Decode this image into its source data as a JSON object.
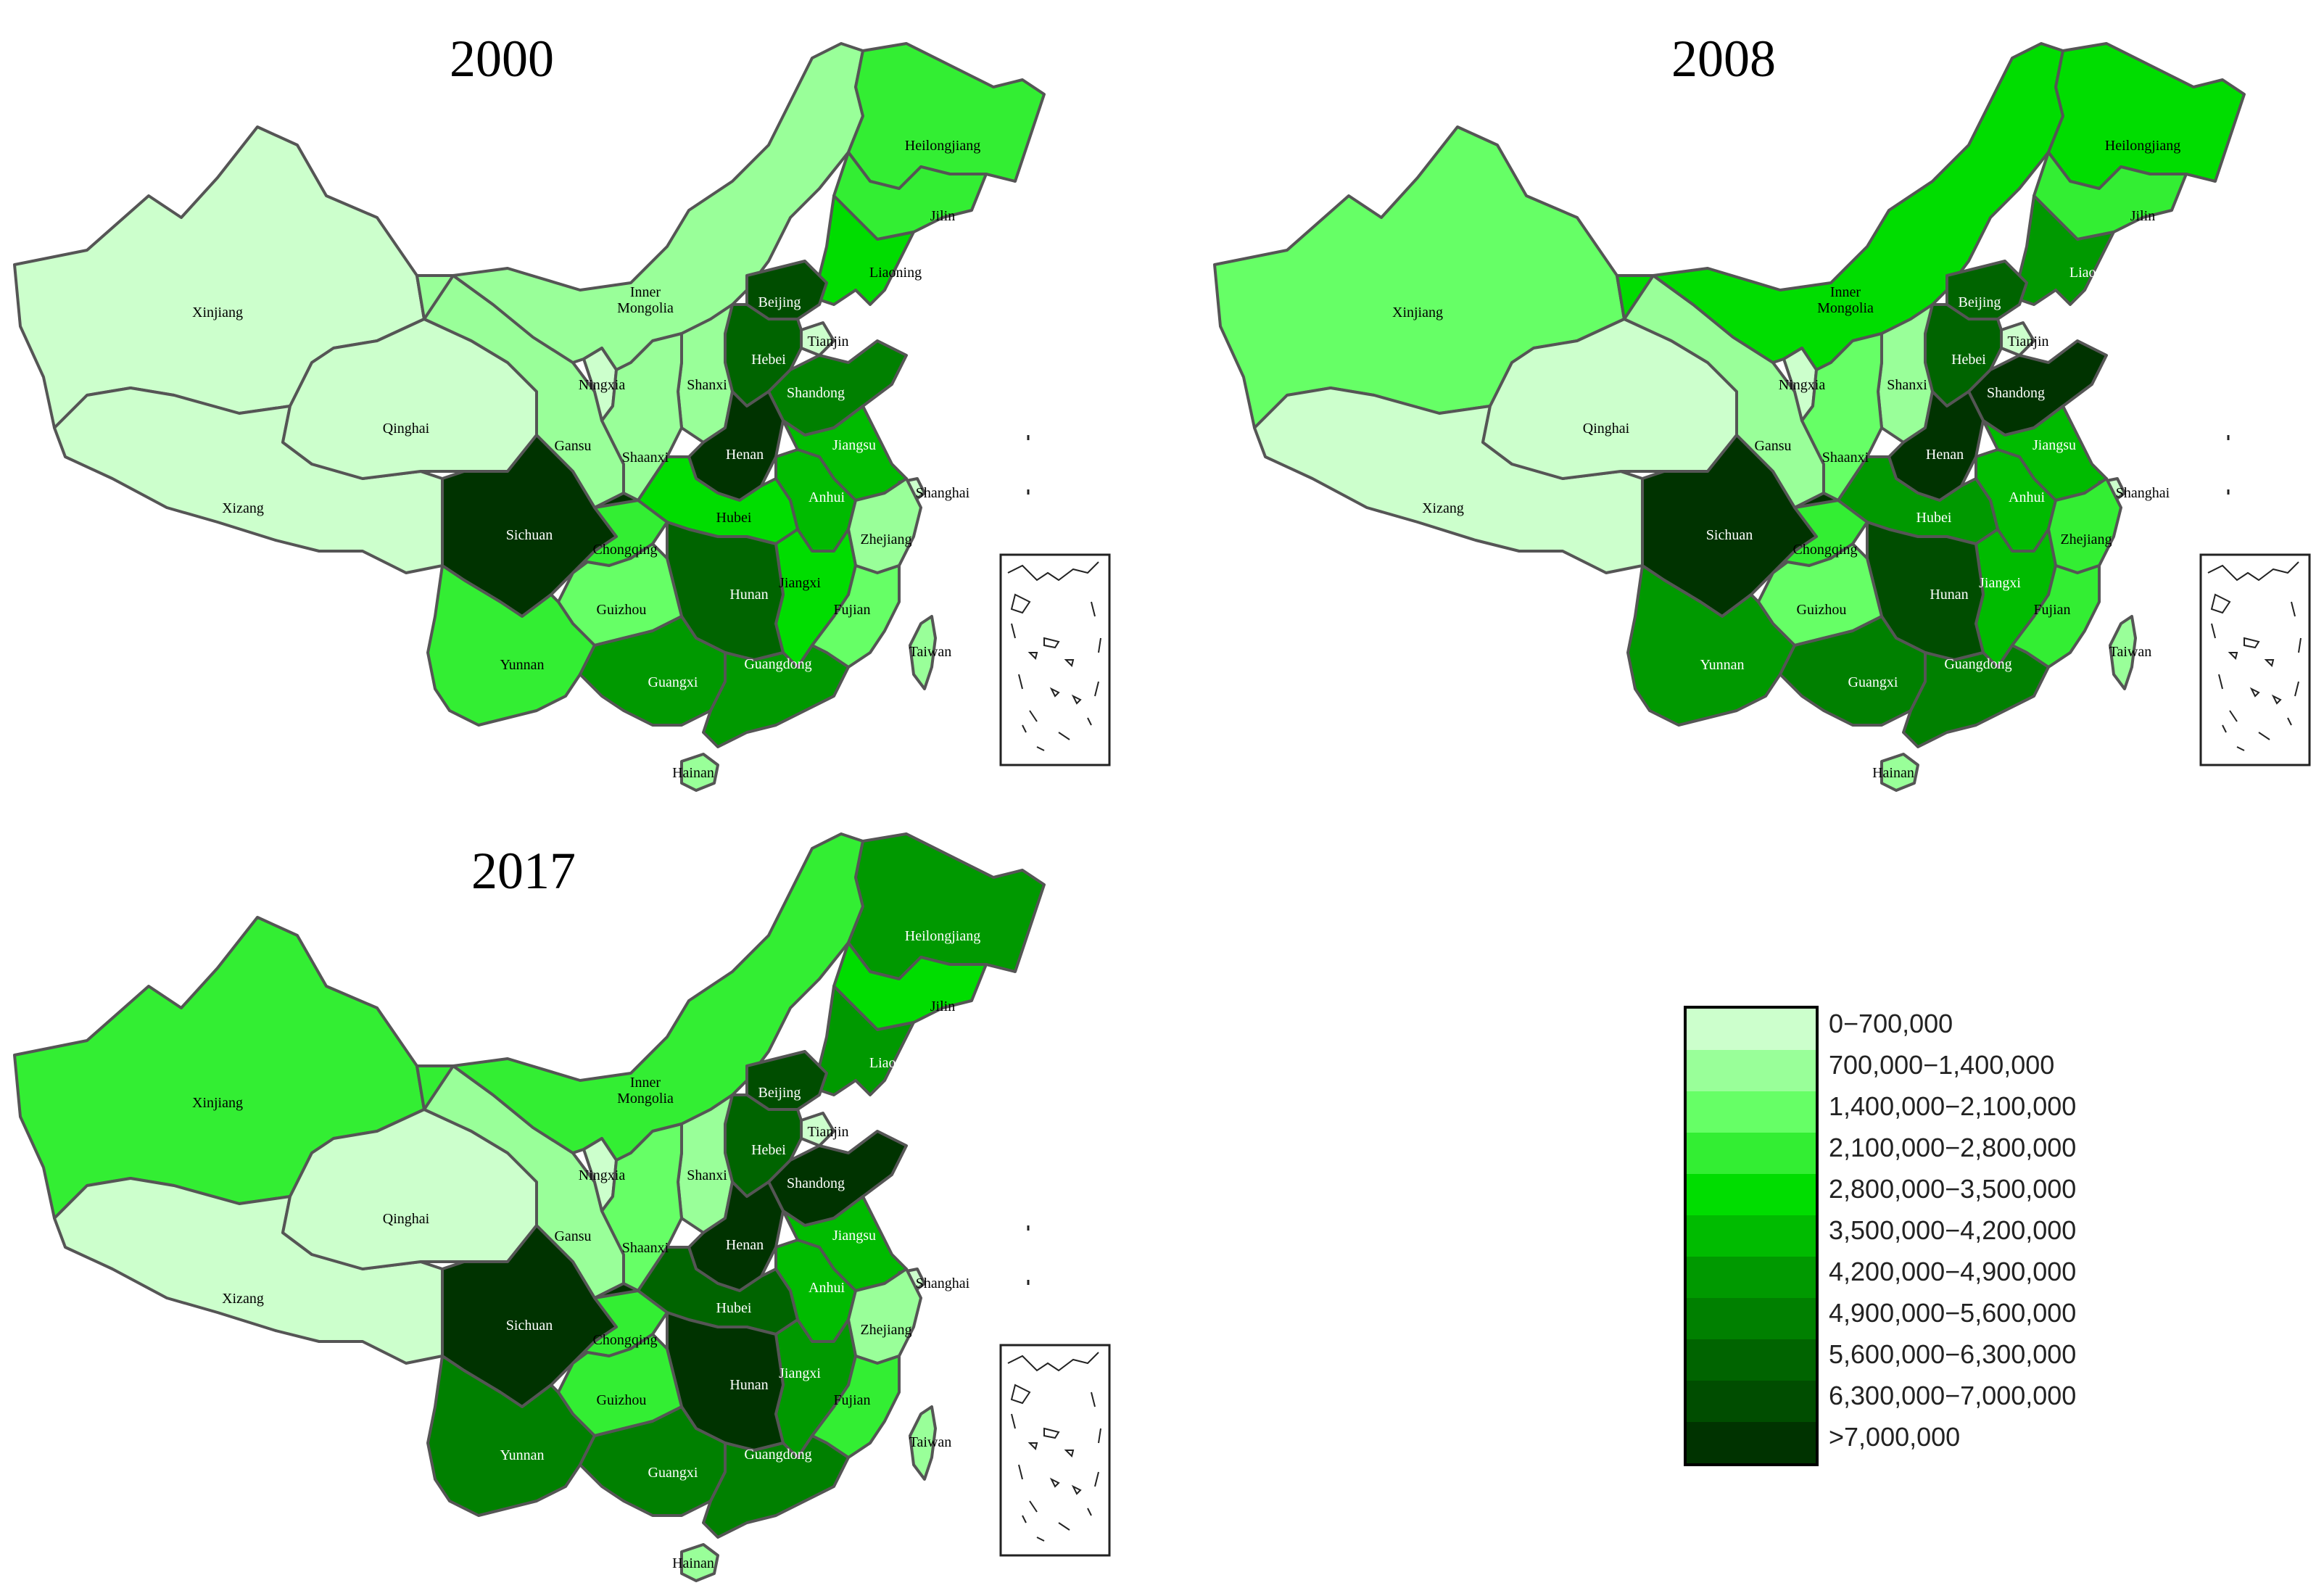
{
  "maps": [
    {
      "title": "2000",
      "provinces": {
        "xinjiang": {
          "label": "Xinjiang",
          "bin": 0
        },
        "xizang": {
          "label": "Xizang",
          "bin": 0
        },
        "qinghai": {
          "label": "Qinghai",
          "bin": 0
        },
        "gansu": {
          "label": "Gansu",
          "bin": 1
        },
        "ningxia": {
          "label": "Ningxia",
          "bin": 0
        },
        "inner_mongolia": {
          "label": "Inner\nMongolia",
          "bin": 1
        },
        "heilongjiang": {
          "label": "Heilongjiang",
          "bin": 3
        },
        "jilin": {
          "label": "Jilin",
          "bin": 3
        },
        "liaoning": {
          "label": "Liaoning",
          "bin": 4
        },
        "beijing": {
          "label": "Beijing",
          "bin": 9
        },
        "tianjin": {
          "label": "Tianjin",
          "bin": 0
        },
        "hebei": {
          "label": "Hebei",
          "bin": 8
        },
        "shanxi": {
          "label": "Shanxi",
          "bin": 1
        },
        "shaanxi": {
          "label": "Shaanxi",
          "bin": 1
        },
        "shandong": {
          "label": "Shandong",
          "bin": 7
        },
        "henan": {
          "label": "Henan",
          "bin": 10
        },
        "jiangsu": {
          "label": "Jiangsu",
          "bin": 5
        },
        "shanghai": {
          "label": "Shanghai",
          "bin": 0
        },
        "anhui": {
          "label": "Anhui",
          "bin": 5
        },
        "hubei": {
          "label": "Hubei",
          "bin": 4
        },
        "sichuan": {
          "label": "Sichuan",
          "bin": 10
        },
        "chongqing": {
          "label": "Chongqing",
          "bin": 3
        },
        "zhejiang": {
          "label": "Zhejiang",
          "bin": 1
        },
        "jiangxi": {
          "label": "Jiangxi",
          "bin": 4
        },
        "hunan": {
          "label": "Hunan",
          "bin": 8
        },
        "guizhou": {
          "label": "Guizhou",
          "bin": 2
        },
        "fujian": {
          "label": "Fujian",
          "bin": 2
        },
        "yunnan": {
          "label": "Yunnan",
          "bin": 3
        },
        "guangxi": {
          "label": "Guangxi",
          "bin": 6
        },
        "guangdong": {
          "label": "Guangdong",
          "bin": 6
        },
        "taiwan": {
          "label": "Taiwan",
          "bin": 1
        },
        "hainan": {
          "label": "Hainan",
          "bin": 1
        }
      }
    },
    {
      "title": "2008",
      "provinces": {
        "xinjiang": {
          "label": "Xinjiang",
          "bin": 2
        },
        "xizang": {
          "label": "Xizang",
          "bin": 0
        },
        "qinghai": {
          "label": "Qinghai",
          "bin": 0
        },
        "gansu": {
          "label": "Gansu",
          "bin": 1
        },
        "ningxia": {
          "label": "Ningxia",
          "bin": 0
        },
        "inner_mongolia": {
          "label": "Inner\nMongolia",
          "bin": 4
        },
        "heilongjiang": {
          "label": "Heilongjiang",
          "bin": 4
        },
        "jilin": {
          "label": "Jilin",
          "bin": 3
        },
        "liaoning": {
          "label": "Liaoning",
          "bin": 6
        },
        "beijing": {
          "label": "Beijing",
          "bin": 8
        },
        "tianjin": {
          "label": "Tianjin",
          "bin": 0
        },
        "hebei": {
          "label": "Hebei",
          "bin": 8
        },
        "shanxi": {
          "label": "Shanxi",
          "bin": 1
        },
        "shaanxi": {
          "label": "Shaanxi",
          "bin": 2
        },
        "shandong": {
          "label": "Shandong",
          "bin": 10
        },
        "henan": {
          "label": "Henan",
          "bin": 10
        },
        "jiangsu": {
          "label": "Jiangsu",
          "bin": 5
        },
        "shanghai": {
          "label": "Shanghai",
          "bin": 0
        },
        "anhui": {
          "label": "Anhui",
          "bin": 5
        },
        "hubei": {
          "label": "Hubei",
          "bin": 6
        },
        "sichuan": {
          "label": "Sichuan",
          "bin": 10
        },
        "chongqing": {
          "label": "Chongqing",
          "bin": 3
        },
        "zhejiang": {
          "label": "Zhejiang",
          "bin": 3
        },
        "jiangxi": {
          "label": "Jiangxi",
          "bin": 5
        },
        "hunan": {
          "label": "Hunan",
          "bin": 9
        },
        "guizhou": {
          "label": "Guizhou",
          "bin": 2
        },
        "fujian": {
          "label": "Fujian",
          "bin": 3
        },
        "yunnan": {
          "label": "Yunnan",
          "bin": 6
        },
        "guangxi": {
          "label": "Guangxi",
          "bin": 7
        },
        "guangdong": {
          "label": "Guangdong",
          "bin": 7
        },
        "taiwan": {
          "label": "Taiwan",
          "bin": 1
        },
        "hainan": {
          "label": "Hainan",
          "bin": 1
        }
      }
    },
    {
      "title": "2017",
      "provinces": {
        "xinjiang": {
          "label": "Xinjiang",
          "bin": 3
        },
        "xizang": {
          "label": "Xizang",
          "bin": 0
        },
        "qinghai": {
          "label": "Qinghai",
          "bin": 0
        },
        "gansu": {
          "label": "Gansu",
          "bin": 1
        },
        "ningxia": {
          "label": "Ningxia",
          "bin": 0
        },
        "inner_mongolia": {
          "label": "Inner\nMongolia",
          "bin": 3
        },
        "heilongjiang": {
          "label": "Heilongjiang",
          "bin": 6
        },
        "jilin": {
          "label": "Jilin",
          "bin": 4
        },
        "liaoning": {
          "label": "Liaoning",
          "bin": 6
        },
        "beijing": {
          "label": "Beijing",
          "bin": 9
        },
        "tianjin": {
          "label": "Tianjin",
          "bin": 0
        },
        "hebei": {
          "label": "Hebei",
          "bin": 8
        },
        "shanxi": {
          "label": "Shanxi",
          "bin": 1
        },
        "shaanxi": {
          "label": "Shaanxi",
          "bin": 2
        },
        "shandong": {
          "label": "Shandong",
          "bin": 10
        },
        "henan": {
          "label": "Henan",
          "bin": 10
        },
        "jiangsu": {
          "label": "Jiangsu",
          "bin": 5
        },
        "shanghai": {
          "label": "Shanghai",
          "bin": 0
        },
        "anhui": {
          "label": "Anhui",
          "bin": 5
        },
        "hubei": {
          "label": "Hubei",
          "bin": 8
        },
        "sichuan": {
          "label": "Sichuan",
          "bin": 10
        },
        "chongqing": {
          "label": "Chongqing",
          "bin": 3
        },
        "zhejiang": {
          "label": "Zhejiang",
          "bin": 1
        },
        "jiangxi": {
          "label": "Jiangxi",
          "bin": 6
        },
        "hunan": {
          "label": "Hunan",
          "bin": 10
        },
        "guizhou": {
          "label": "Guizhou",
          "bin": 3
        },
        "fujian": {
          "label": "Fujian",
          "bin": 3
        },
        "yunnan": {
          "label": "Yunnan",
          "bin": 7
        },
        "guangxi": {
          "label": "Guangxi",
          "bin": 7
        },
        "guangdong": {
          "label": "Guangdong",
          "bin": 7
        },
        "taiwan": {
          "label": "Taiwan",
          "bin": 1
        },
        "hainan": {
          "label": "Hainan",
          "bin": 1
        }
      }
    }
  ],
  "legend": {
    "bins": [
      {
        "label": "0−700,000",
        "color": "#ccffcc"
      },
      {
        "label": "700,000−1,400,000",
        "color": "#99ff99"
      },
      {
        "label": "1,400,000−2,100,000",
        "color": "#66ff66"
      },
      {
        "label": "2,100,000−2,800,000",
        "color": "#33ee33"
      },
      {
        "label": "2,800,000−3,500,000",
        "color": "#00dd00"
      },
      {
        "label": "3,500,000−4,200,000",
        "color": "#00bb00"
      },
      {
        "label": "4,200,000−4,900,000",
        "color": "#009900"
      },
      {
        "label": "4,900,000−5,600,000",
        "color": "#008000"
      },
      {
        "label": "5,600,000−6,300,000",
        "color": "#006400"
      },
      {
        "label": "6,300,000−7,000,000",
        "color": "#004d00"
      },
      {
        "label": ">7,000,000",
        "color": "#003300"
      }
    ]
  }
}
